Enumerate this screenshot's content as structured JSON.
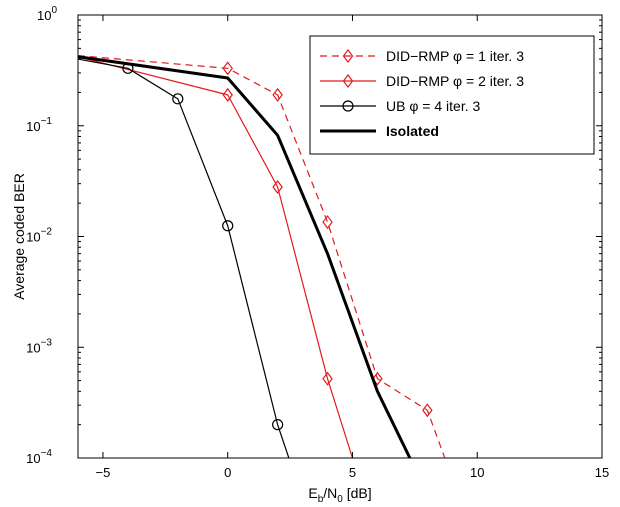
{
  "chart_data": {
    "type": "line",
    "title": "",
    "xlabel": {
      "main": "E",
      "sub1": "b",
      "mid": "/N",
      "sub2": "0",
      "tail": " [dB]"
    },
    "ylabel": "Average coded BER",
    "xlim": [
      -6,
      15
    ],
    "ylim": [
      0.0001,
      1
    ],
    "yscale": "log",
    "grid": false,
    "legend_position": "top-right",
    "x_ticks": [
      {
        "value": -5,
        "label": "−5"
      },
      {
        "value": 0,
        "label": "0"
      },
      {
        "value": 5,
        "label": "5"
      },
      {
        "value": 10,
        "label": "10"
      },
      {
        "value": 15,
        "label": "15"
      }
    ],
    "y_ticks": [
      {
        "value": 0.0001,
        "base": "10",
        "exp": "−4"
      },
      {
        "value": 0.001,
        "base": "10",
        "exp": "−3"
      },
      {
        "value": 0.01,
        "base": "10",
        "exp": "−2"
      },
      {
        "value": 0.1,
        "base": "10",
        "exp": "−1"
      },
      {
        "value": 1,
        "base": "10",
        "exp": "0"
      }
    ],
    "series": [
      {
        "name": "DID−RMP φ = 1 iter. 3",
        "color": "#e41a1c",
        "dash": "dashed",
        "marker": "diamond",
        "bold": false,
        "x": [
          -6,
          0,
          2,
          4,
          6,
          8,
          8.7
        ],
        "y": [
          0.43,
          0.33,
          0.19,
          0.0135,
          0.00052,
          0.00027,
          0.0001
        ],
        "marker_x": [
          0,
          2,
          4,
          6,
          8
        ],
        "marker_y": [
          0.33,
          0.19,
          0.0135,
          0.00052,
          0.00027
        ]
      },
      {
        "name": "DID−RMP φ = 2 iter. 3",
        "color": "#e41a1c",
        "dash": "solid",
        "marker": "diamond",
        "bold": false,
        "x": [
          -6,
          0,
          2,
          4,
          5
        ],
        "y": [
          0.42,
          0.19,
          0.028,
          0.00052,
          0.0001
        ],
        "marker_x": [
          0,
          2,
          4
        ],
        "marker_y": [
          0.19,
          0.028,
          0.00052
        ]
      },
      {
        "name": "UB φ = 4 iter. 3",
        "color": "#000000",
        "dash": "solid",
        "marker": "circle",
        "bold": false,
        "x": [
          -6,
          -4,
          -2,
          0,
          2,
          2.45
        ],
        "y": [
          0.4,
          0.33,
          0.175,
          0.0125,
          0.0002,
          0.0001
        ],
        "marker_x": [
          -4,
          -2,
          0,
          2
        ],
        "marker_y": [
          0.33,
          0.175,
          0.0125,
          0.0002
        ]
      },
      {
        "name": "Isolated",
        "color": "#000000",
        "dash": "solid",
        "marker": "none",
        "bold": true,
        "x": [
          -6,
          0,
          2,
          4,
          6,
          7.3
        ],
        "y": [
          0.42,
          0.27,
          0.082,
          0.007,
          0.0004,
          0.0001
        ],
        "marker_x": [],
        "marker_y": []
      }
    ]
  }
}
